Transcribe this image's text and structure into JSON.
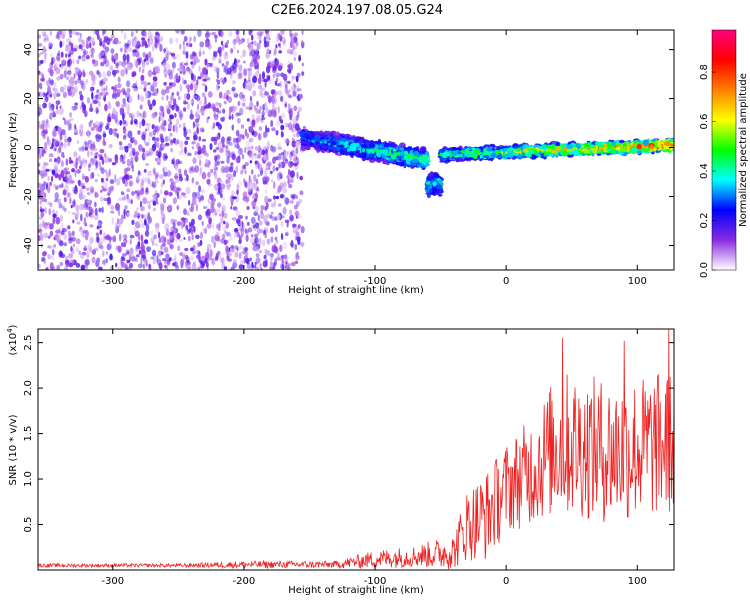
{
  "figure": {
    "title": "C2E6.2024.197.08.05.G24"
  },
  "chart_data": [
    {
      "type": "heatmap",
      "xlabel": "Height of straight line (km)",
      "ylabel": "Frequency (Hz)",
      "xlim": [
        -357,
        128
      ],
      "ylim": [
        -50,
        48
      ],
      "xticks": [
        -300,
        -200,
        -100,
        0,
        100
      ],
      "yticks": [
        -40,
        -20,
        0,
        20,
        40
      ],
      "grid": false,
      "colorbar": {
        "label": "Normalized spectral amplitude",
        "range": [
          0,
          0.97
        ],
        "ticks": [
          0.0,
          0.2,
          0.4,
          0.6,
          0.8
        ],
        "colormap": "rainbow",
        "colors": [
          "#ffffff",
          "#8a2be2",
          "#0000ff",
          "#00ffff",
          "#00ff00",
          "#ffff00",
          "#ff8000",
          "#ff0000",
          "#ff0080"
        ]
      },
      "regions": [
        {
          "x": [
            -357,
            -155
          ],
          "freq": [
            -50,
            48
          ],
          "amplitude": 0.15,
          "description": "noise"
        },
        {
          "x": [
            -155,
            -60
          ],
          "center_freq": [
            4,
            -5
          ],
          "spread": 5,
          "amplitude": [
            0.35,
            0.55
          ]
        },
        {
          "x": [
            -60,
            -50
          ],
          "center_freq": -15,
          "spread": 6,
          "amplitude": 0.45
        },
        {
          "x": [
            -50,
            128
          ],
          "center_freq": [
            -3,
            1
          ],
          "spread": 3,
          "amplitude": [
            0.5,
            0.9
          ]
        }
      ]
    },
    {
      "type": "line",
      "xlabel": "Height of straight line (km)",
      "ylabel": "SNR (10 * v/v)",
      "yscale_label": "(x10",
      "yscale_exp": "4",
      "yscale_close": ")",
      "xlim": [
        -357,
        128
      ],
      "ylim": [
        0,
        2.65
      ],
      "xticks": [
        -300,
        -200,
        -100,
        0,
        100
      ],
      "yticks": [
        0.5,
        1.0,
        1.5,
        2.0,
        2.5
      ],
      "grid": false,
      "series": [
        {
          "color": "#ee2222",
          "envelope": [
            {
              "x": -357,
              "mean": 0.05,
              "noise": 0.02
            },
            {
              "x": -250,
              "mean": 0.05,
              "noise": 0.02
            },
            {
              "x": -200,
              "mean": 0.06,
              "noise": 0.04
            },
            {
              "x": -130,
              "mean": 0.06,
              "noise": 0.04
            },
            {
              "x": -100,
              "mean": 0.12,
              "noise": 0.1
            },
            {
              "x": -70,
              "mean": 0.15,
              "noise": 0.12
            },
            {
              "x": -40,
              "mean": 0.2,
              "noise": 0.2
            },
            {
              "x": -30,
              "mean": 0.5,
              "noise": 0.4
            },
            {
              "x": -15,
              "mean": 0.6,
              "noise": 0.5
            },
            {
              "x": 0,
              "mean": 0.9,
              "noise": 0.5
            },
            {
              "x": 20,
              "mean": 1.1,
              "noise": 0.6
            },
            {
              "x": 40,
              "mean": 1.4,
              "noise": 0.8
            },
            {
              "x": 80,
              "mean": 1.3,
              "noise": 0.8
            },
            {
              "x": 128,
              "mean": 1.4,
              "noise": 0.8
            }
          ],
          "peaks": [
            {
              "x": 43,
              "y": 2.55
            },
            {
              "x": 90,
              "y": 2.52
            },
            {
              "x": 124,
              "y": 2.65
            }
          ]
        }
      ]
    }
  ]
}
